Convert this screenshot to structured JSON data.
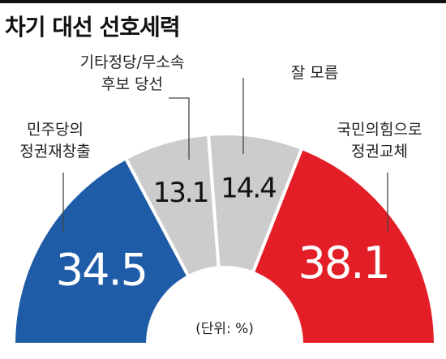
{
  "title": "차기 대선 선호세력",
  "chart_data": {
    "type": "pie",
    "shape": "semicircle-donut",
    "unit_note": "(단위: %)",
    "slices": [
      {
        "label_lines": [
          "민주당의",
          "정권재창출"
        ],
        "value": 34.5,
        "color": "#1f5ca8",
        "value_color": "#ffffff"
      },
      {
        "label_lines": [
          "기타정당/무소속",
          "후보 당선"
        ],
        "value": 13.1,
        "color": "#cccccc",
        "value_color": "#111111"
      },
      {
        "label_lines": [
          "잘 모름"
        ],
        "value": 14.4,
        "color": "#cccccc",
        "value_color": "#111111"
      },
      {
        "label_lines": [
          "국민의힘으로",
          "정권교체"
        ],
        "value": 38.1,
        "color": "#e41e26",
        "value_color": "#ffffff"
      }
    ]
  }
}
